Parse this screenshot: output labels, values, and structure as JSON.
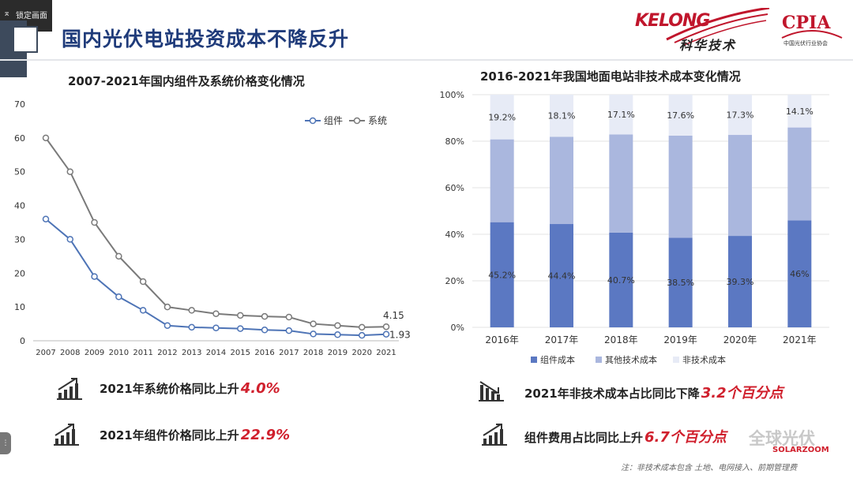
{
  "overlay": {
    "lock_label": "锁定画面"
  },
  "header": {
    "title": "国内光伏电站投资成本不降反升"
  },
  "logos": {
    "kelong": "KELONG",
    "kelong_cn": "科华技术",
    "cpia": "CPIA",
    "cpia_cn": "中国光伏行业协会"
  },
  "colors": {
    "title": "#1f3b7a",
    "accent": "#d0202d",
    "module": "#5b78c2",
    "other_tech": "#aab7de",
    "non_tech": "#e7ebf6",
    "line_module": "#4e74b6",
    "line_system": "#7a7a7a"
  },
  "left_stats": [
    {
      "text": "2021年系统价格同比上升",
      "value": "4.0%"
    },
    {
      "text": "2021年组件价格同比上升",
      "value": "22.9%"
    }
  ],
  "right_stats": [
    {
      "text": "2021年非技术成本占比同比下降",
      "value": "3.2个百分点"
    },
    {
      "text": "组件费用占比同比上升",
      "value": "6.7个百分点"
    }
  ],
  "footnote": "注：非技术成本包含 土地、电网接入、前期管理费",
  "watermark": {
    "name": "全球光伏",
    "site": "SOLARZOOM"
  },
  "chart_data": [
    {
      "type": "line",
      "title": "2007-2021年国内组件及系统价格变化情况",
      "x": [
        "2007",
        "2008",
        "2009",
        "2010",
        "2011",
        "2012",
        "2013",
        "2014",
        "2015",
        "2016",
        "2017",
        "2018",
        "2019",
        "2020",
        "2021"
      ],
      "ylim": [
        0,
        70
      ],
      "yticks": [
        0,
        10,
        20,
        30,
        40,
        50,
        60,
        70
      ],
      "grid": false,
      "legend": "top-right",
      "series": [
        {
          "name": "组件",
          "values": [
            36,
            30,
            19,
            13,
            9,
            4.5,
            4,
            3.8,
            3.6,
            3.2,
            3,
            2,
            1.8,
            1.6,
            1.93
          ]
        },
        {
          "name": "系统",
          "values": [
            60,
            50,
            35,
            25,
            17.5,
            10,
            9,
            8,
            7.5,
            7.2,
            7,
            5,
            4.5,
            4,
            4.15
          ]
        }
      ],
      "annotations": [
        {
          "series": "系统",
          "x": "2021",
          "label": "4.15"
        },
        {
          "series": "组件",
          "x": "2021",
          "label": "1.93"
        }
      ]
    },
    {
      "type": "bar",
      "stacked": true,
      "title": "2016-2021年我国地面电站非技术成本变化情况",
      "categories": [
        "2016年",
        "2017年",
        "2018年",
        "2019年",
        "2020年",
        "2021年"
      ],
      "ylim": [
        0,
        100
      ],
      "yticks": [
        "0%",
        "20%",
        "40%",
        "60%",
        "80%",
        "100%"
      ],
      "grid": true,
      "legend": "bottom",
      "series": [
        {
          "name": "组件成本",
          "values": [
            45.2,
            44.4,
            40.7,
            38.5,
            39.3,
            46
          ],
          "labels": [
            "45.2%",
            "44.4%",
            "40.7%",
            "38.5%",
            "39.3%",
            "46%"
          ]
        },
        {
          "name": "其他技术成本",
          "values": [
            35.6,
            37.5,
            42.2,
            43.9,
            43.4,
            39.9
          ]
        },
        {
          "name": "非技术成本",
          "values": [
            19.2,
            18.1,
            17.1,
            17.6,
            17.3,
            14.1
          ],
          "labels": [
            "19.2%",
            "18.1%",
            "17.1%",
            "17.6%",
            "17.3%",
            "14.1%"
          ]
        }
      ]
    }
  ]
}
